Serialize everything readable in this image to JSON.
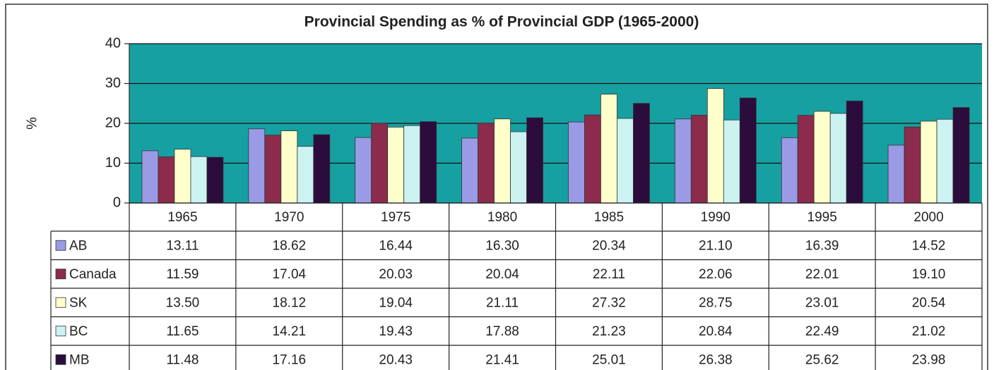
{
  "chart_data": {
    "type": "bar",
    "title": "Provincial Spending as % of Provincial GDP (1965-2000)",
    "y_label": "%",
    "categories": [
      "1965",
      "1970",
      "1975",
      "1980",
      "1985",
      "1990",
      "1995",
      "2000"
    ],
    "series": [
      {
        "name": "AB",
        "color": "#9a9ae6",
        "values": [
          13.11,
          18.62,
          16.44,
          16.3,
          20.34,
          21.1,
          16.39,
          14.52
        ],
        "value_labels": [
          "13.11",
          "18.62",
          "16.44",
          "16.30",
          "20.34",
          "21.10",
          "16.39",
          "14.52"
        ]
      },
      {
        "name": "Canada",
        "color": "#8c2b4b",
        "values": [
          11.59,
          17.04,
          20.03,
          20.04,
          22.11,
          22.06,
          22.01,
          19.1
        ],
        "value_labels": [
          "11.59",
          "17.04",
          "20.03",
          "20.04",
          "22.11",
          "22.06",
          "22.01",
          "19.10"
        ]
      },
      {
        "name": "SK",
        "color": "#ffffcc",
        "values": [
          13.5,
          18.12,
          19.04,
          21.11,
          27.32,
          28.75,
          23.01,
          20.54
        ],
        "value_labels": [
          "13.50",
          "18.12",
          "19.04",
          "21.11",
          "27.32",
          "28.75",
          "23.01",
          "20.54"
        ]
      },
      {
        "name": "BC",
        "color": "#ccf2f2",
        "values": [
          11.65,
          14.21,
          19.43,
          17.88,
          21.23,
          20.84,
          22.49,
          21.02
        ],
        "value_labels": [
          "11.65",
          "14.21",
          "19.43",
          "17.88",
          "21.23",
          "20.84",
          "22.49",
          "21.02"
        ]
      },
      {
        "name": "MB",
        "color": "#2b0c3c",
        "values": [
          11.48,
          17.16,
          20.43,
          21.41,
          25.01,
          26.38,
          25.62,
          23.98
        ],
        "value_labels": [
          "11.48",
          "17.16",
          "20.43",
          "21.41",
          "25.01",
          "26.38",
          "25.62",
          "23.98"
        ]
      }
    ],
    "ylim": [
      0,
      40
    ],
    "yticks": [
      0,
      10,
      20,
      30,
      40
    ],
    "grid": true,
    "plot_background": "#17a0a2"
  }
}
